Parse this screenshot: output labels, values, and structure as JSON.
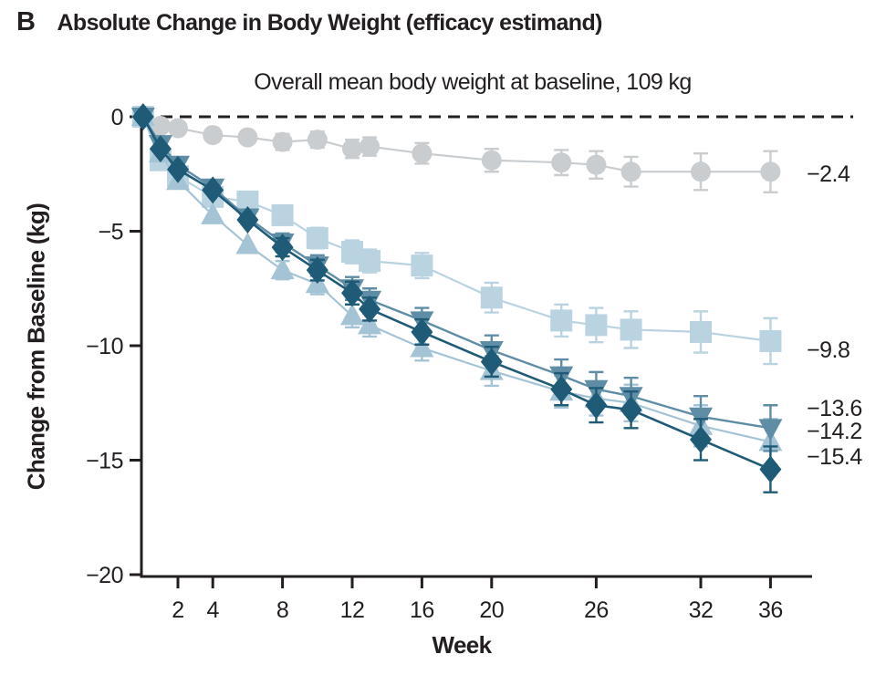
{
  "figure": {
    "panel_label": "B",
    "title": "Absolute Change in Body Weight (efficacy estimand)",
    "subtitle": "Overall mean body weight at baseline, 109 kg"
  },
  "chart_data": {
    "type": "line",
    "title": "Absolute Change in Body Weight (efficacy estimand)",
    "subtitle": "Overall mean body weight at baseline, 109 kg",
    "xlabel": "Week",
    "ylabel": "Change from Baseline (kg)",
    "xlim": [
      0,
      37
    ],
    "ylim": [
      -20,
      0
    ],
    "grid": false,
    "zero_reference_line": "dashed",
    "legend": "end-of-line value labels",
    "x_ticks": [
      2,
      4,
      8,
      12,
      16,
      20,
      26,
      32,
      36
    ],
    "x_tick_labels": [
      "2",
      "4",
      "8",
      "12",
      "16",
      "20",
      "26",
      "32",
      "36"
    ],
    "y_ticks": [
      0,
      -5,
      -10,
      -15,
      -20
    ],
    "y_tick_labels": [
      "0",
      "−5",
      "−10",
      "−15",
      "−20"
    ],
    "x": [
      0,
      1,
      2,
      4,
      6,
      8,
      10,
      12,
      13,
      16,
      20,
      24,
      26,
      28,
      32,
      36
    ],
    "series": [
      {
        "name": "circles-gray",
        "marker": "circle",
        "color": "#c9cdd0",
        "line_width": 2.2,
        "end_label": "−2.4",
        "values": [
          0,
          -0.4,
          -0.5,
          -0.8,
          -0.9,
          -1.1,
          -1.0,
          -1.4,
          -1.3,
          -1.6,
          -1.9,
          -2.0,
          -2.1,
          -2.4,
          -2.4,
          -2.4
        ],
        "errors": [
          0,
          0,
          0,
          0,
          0,
          0.35,
          0.35,
          0.4,
          0.4,
          0.45,
          0.5,
          0.55,
          0.6,
          0.65,
          0.8,
          0.9
        ]
      },
      {
        "name": "squares-lightblue",
        "marker": "square",
        "color": "#b9d3e1",
        "line_width": 2.2,
        "end_label": "−9.8",
        "values": [
          0,
          -1.9,
          -2.6,
          -3.5,
          -3.7,
          -4.3,
          -5.3,
          -5.9,
          -6.3,
          -6.5,
          -7.9,
          -8.9,
          -9.1,
          -9.3,
          -9.4,
          -9.8
        ],
        "errors": [
          0,
          0,
          0,
          0,
          0,
          0.4,
          0.45,
          0.5,
          0.5,
          0.55,
          0.65,
          0.7,
          0.75,
          0.8,
          0.9,
          1.0
        ]
      },
      {
        "name": "triangles-up-mediumblue",
        "marker": "triangle-up",
        "color": "#a4c4d6",
        "line_width": 2.2,
        "end_label": "−14.2",
        "values": [
          0,
          -1.6,
          -2.8,
          -4.3,
          -5.6,
          -6.7,
          -7.3,
          -8.7,
          -9.1,
          -10.1,
          -11.1,
          -12.0,
          -12.3,
          -12.5,
          -13.5,
          -14.2
        ],
        "errors": [
          0,
          0,
          0,
          0,
          0,
          0.4,
          0.45,
          0.5,
          0.5,
          0.55,
          0.65,
          0.7,
          0.75,
          0.8,
          0.9,
          1.0
        ]
      },
      {
        "name": "triangles-down-teal",
        "marker": "triangle-down",
        "color": "#5f8da6",
        "line_width": 2.4,
        "end_label": "−13.6",
        "values": [
          0,
          -1.2,
          -2.1,
          -3.1,
          -4.4,
          -5.5,
          -6.5,
          -7.5,
          -8.0,
          -8.9,
          -10.2,
          -11.3,
          -11.9,
          -12.2,
          -13.1,
          -13.6
        ],
        "errors": [
          0,
          0,
          0,
          0,
          0,
          0.4,
          0.45,
          0.5,
          0.5,
          0.55,
          0.65,
          0.7,
          0.75,
          0.8,
          0.9,
          1.0
        ]
      },
      {
        "name": "diamonds-darkteal",
        "marker": "diamond",
        "color": "#1f5b76",
        "line_width": 2.6,
        "end_label": "−15.4",
        "values": [
          0,
          -1.4,
          -2.3,
          -3.2,
          -4.5,
          -5.7,
          -6.7,
          -7.7,
          -8.4,
          -9.4,
          -10.7,
          -11.9,
          -12.6,
          -12.8,
          -14.1,
          -15.4
        ],
        "errors": [
          0,
          0,
          0,
          0,
          0,
          0.4,
          0.45,
          0.5,
          0.5,
          0.55,
          0.65,
          0.7,
          0.75,
          0.8,
          0.9,
          1.0
        ]
      }
    ]
  }
}
